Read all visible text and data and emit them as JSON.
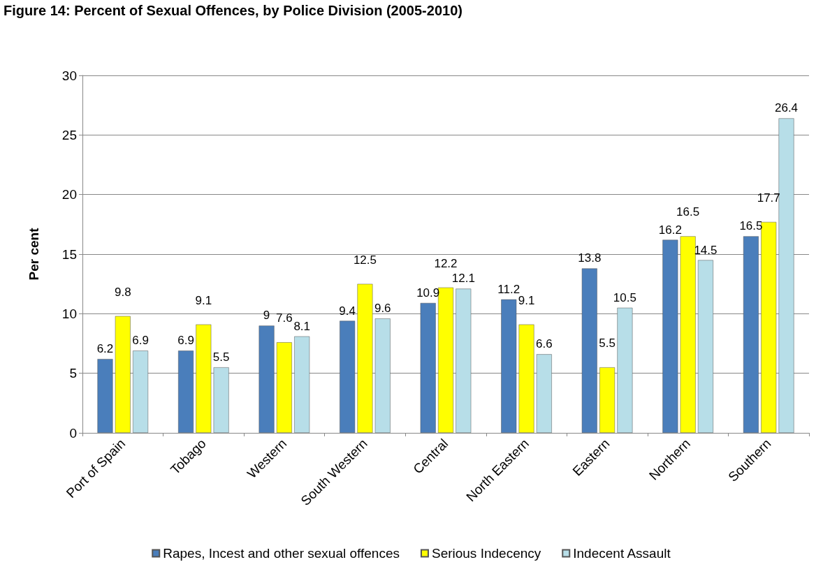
{
  "chart_data": {
    "type": "bar",
    "title": "Figure 14: Percent of Sexual Offences, by Police Division (2005-2010)",
    "ylabel": "Per cent",
    "categories": [
      "Port of Spain",
      "Tobago",
      "Western",
      "South Western",
      "Central",
      "North Eastern",
      "Eastern",
      "Northern",
      "Southern"
    ],
    "series": [
      {
        "name": "Rapes, Incest and other sexual offences",
        "color": "#4a7ebb",
        "values": [
          6.2,
          6.9,
          9,
          9.4,
          10.9,
          11.2,
          13.8,
          16.2,
          16.5
        ]
      },
      {
        "name": "Serious Indecency",
        "color": "#ffff00",
        "values": [
          9.8,
          9.1,
          7.6,
          12.5,
          12.2,
          9.1,
          5.5,
          16.5,
          17.7
        ]
      },
      {
        "name": "Indecent Assault",
        "color": "#b7dee8",
        "values": [
          6.9,
          5.5,
          8.1,
          9.6,
          12.1,
          6.6,
          10.5,
          14.5,
          26.4
        ]
      }
    ],
    "ylim": [
      0,
      30
    ],
    "yticks": [
      0,
      5,
      10,
      15,
      20,
      25,
      30
    ],
    "grid": "y",
    "legend": "bottom",
    "data_labels": true
  }
}
